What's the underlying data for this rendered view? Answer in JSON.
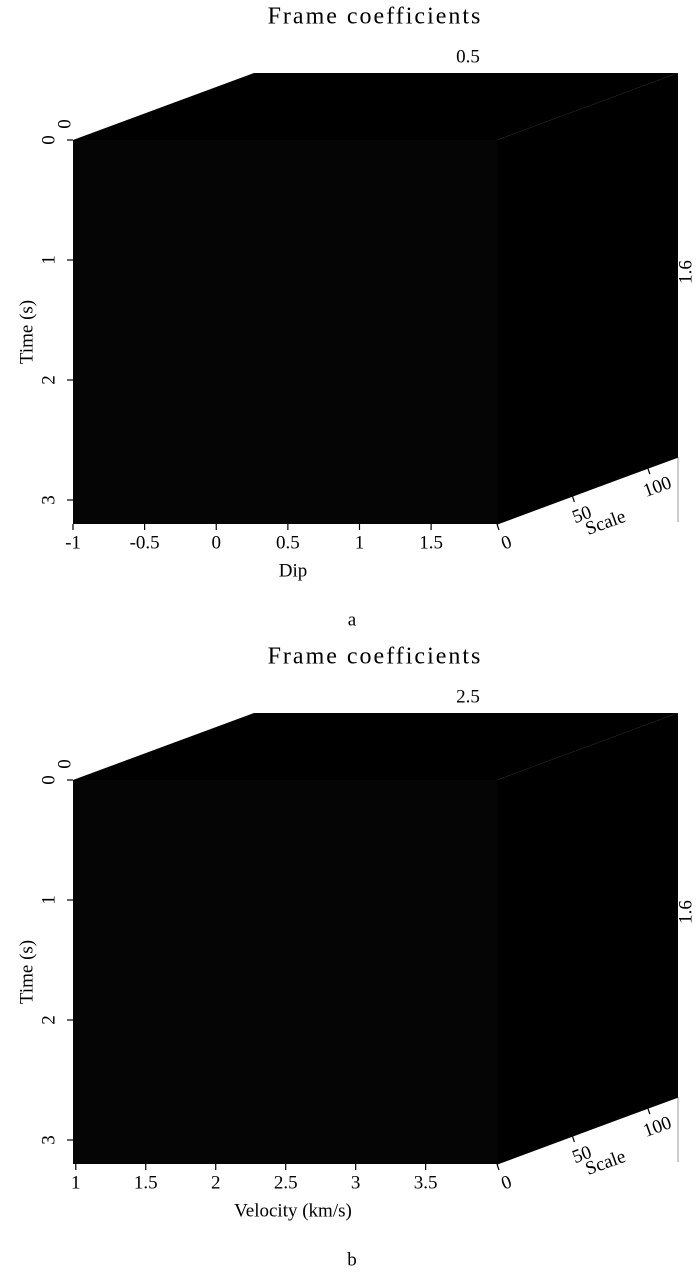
{
  "chart_data": [
    {
      "type": "cube",
      "title": "Frame coefficients",
      "xlabel": "Dip",
      "ylabel": "Time (s)",
      "zlabel": "Scale",
      "xlim": [
        -1,
        1.96
      ],
      "xticks": [
        -1,
        -0.5,
        0,
        0.5,
        1,
        1.5
      ],
      "ylim": [
        0,
        3.2
      ],
      "yticks": [
        0,
        1,
        2,
        3
      ],
      "zlim": [
        0,
        120
      ],
      "zticks": [
        0,
        50,
        100
      ],
      "slices": {
        "x": 0.5,
        "y": 1.6,
        "z": 0
      },
      "caption": "a"
    },
    {
      "type": "cube",
      "title": "Frame coefficients",
      "xlabel": "Velocity (km/s)",
      "ylabel": "Time (s)",
      "zlabel": "Scale",
      "xlim": [
        0.98,
        4.01
      ],
      "xticks": [
        1,
        1.5,
        2,
        2.5,
        3,
        3.5
      ],
      "ylim": [
        0,
        3.2
      ],
      "yticks": [
        0,
        1,
        2,
        3
      ],
      "zlim": [
        0,
        120
      ],
      "zticks": [
        0,
        50,
        100
      ],
      "slices": {
        "x": 2.5,
        "y": 1.6,
        "z": 0
      },
      "caption": "b"
    }
  ]
}
